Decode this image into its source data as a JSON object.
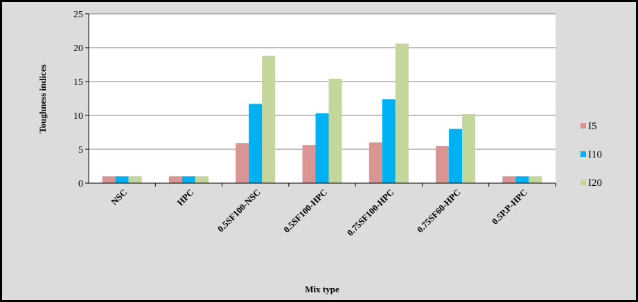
{
  "chart_data": {
    "type": "bar",
    "title": "",
    "xlabel": "Mix type",
    "ylabel": "Toughness indices",
    "ylim": [
      0,
      25
    ],
    "yticks": [
      0,
      5,
      10,
      15,
      20,
      25
    ],
    "grid": true,
    "legend_position": "right",
    "categories": [
      "NSC",
      "HPC",
      "0.5SF100-NSC",
      "0.5SF100-HPC",
      "0.75SF100-HPC",
      "0.75SF60-HPC",
      "0.5P.P-HPC"
    ],
    "series": [
      {
        "name": "I5",
        "color": "#d99594",
        "values": [
          1,
          1,
          5.9,
          5.6,
          6.0,
          5.5,
          1
        ]
      },
      {
        "name": "I10",
        "color": "#00b0f0",
        "values": [
          1,
          1,
          11.7,
          10.3,
          12.4,
          8.0,
          1
        ]
      },
      {
        "name": "I20",
        "color": "#c3d69b",
        "values": [
          1,
          1,
          18.8,
          15.4,
          20.6,
          10.2,
          1
        ]
      }
    ]
  },
  "colors": {
    "frame_background": "#dcdcdc",
    "plot_background": "#ffffff",
    "gridline": "#7f7f7f"
  }
}
